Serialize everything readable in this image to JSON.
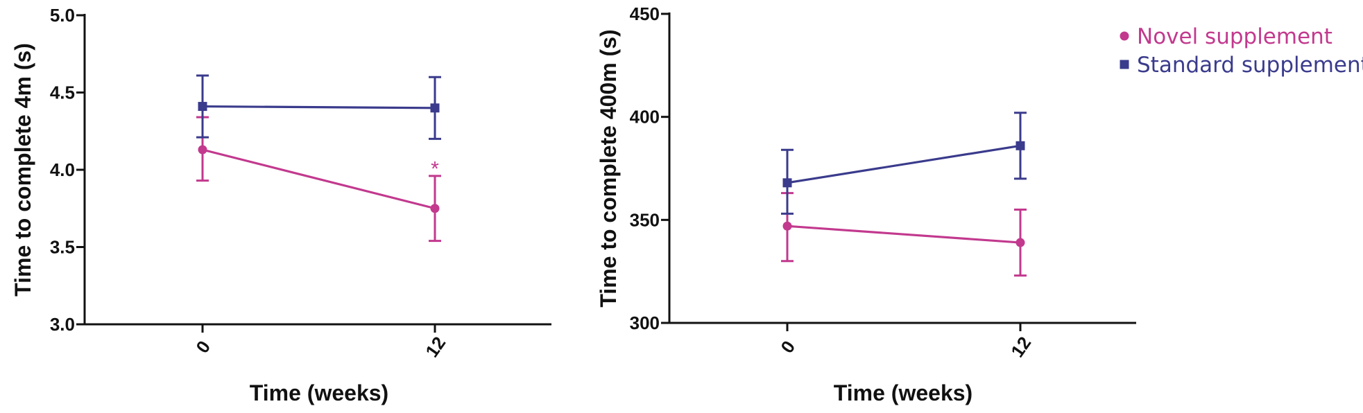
{
  "chart_data": [
    {
      "type": "line",
      "x": [
        0,
        12
      ],
      "ylabel": "Time to complete 4m (s)",
      "xlabel": "Time (weeks)",
      "ylim": [
        3.0,
        5.0
      ],
      "yticks": [
        3.0,
        3.5,
        4.0,
        4.5,
        5.0
      ],
      "ytick_labels": [
        "3.0",
        "3.5",
        "4.0",
        "4.5",
        "5.0"
      ],
      "xtick_labels": [
        "0",
        "12"
      ],
      "grid": false,
      "series": [
        {
          "name": "Novel supplement",
          "color": "#c2398e",
          "marker": "circle",
          "values": [
            4.13,
            3.75
          ],
          "err_low": [
            3.93,
            3.54
          ],
          "err_high": [
            4.34,
            3.96
          ]
        },
        {
          "name": "Standard supplement",
          "color": "#3a3b8c",
          "marker": "square",
          "values": [
            4.41,
            4.4
          ],
          "err_low": [
            4.21,
            4.2
          ],
          "err_high": [
            4.61,
            4.6
          ]
        }
      ],
      "annotations": [
        {
          "text": "*",
          "x": 12,
          "y": 4.06,
          "color": "#c2398e"
        }
      ]
    },
    {
      "type": "line",
      "x": [
        0,
        12
      ],
      "ylabel": "Time to complete 400m (s)",
      "xlabel": "Time (weeks)",
      "ylim": [
        300,
        450
      ],
      "yticks": [
        300,
        350,
        400,
        450
      ],
      "ytick_labels": [
        "300",
        "350",
        "400",
        "450"
      ],
      "xtick_labels": [
        "0",
        "12"
      ],
      "grid": false,
      "series": [
        {
          "name": "Novel supplement",
          "color": "#c2398e",
          "marker": "circle",
          "values": [
            347,
            339
          ],
          "err_low": [
            330,
            323
          ],
          "err_high": [
            363,
            355
          ]
        },
        {
          "name": "Standard supplement",
          "color": "#3a3b8c",
          "marker": "square",
          "values": [
            368,
            386
          ],
          "err_low": [
            353,
            370
          ],
          "err_high": [
            384,
            402
          ]
        }
      ],
      "annotations": []
    }
  ],
  "legend": {
    "placement": "top-right",
    "items": [
      {
        "label": "Novel supplement",
        "color": "#c2398e",
        "marker": "circle"
      },
      {
        "label": "Standard supplement",
        "color": "#3a3b8c",
        "marker": "square"
      }
    ]
  }
}
